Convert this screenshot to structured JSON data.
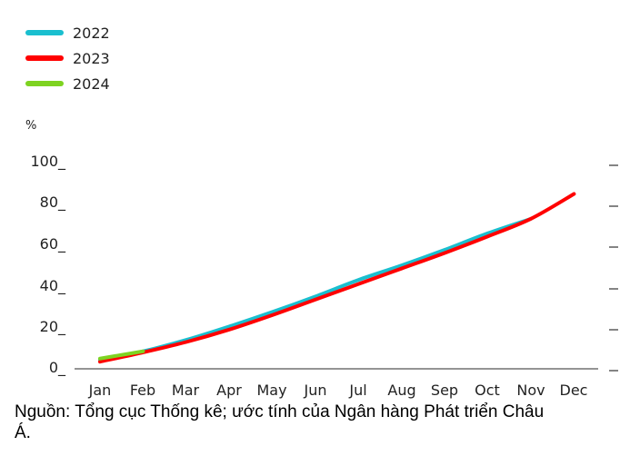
{
  "chart_data": {
    "type": "line",
    "title": "",
    "ylabel": "%",
    "xlabel": "",
    "ylim": [
      0,
      100
    ],
    "yticks": [
      0,
      20,
      40,
      60,
      80,
      100
    ],
    "grid": false,
    "legend_position": "top-left",
    "categories": [
      "Jan",
      "Feb",
      "Mar",
      "Apr",
      "May",
      "Jun",
      "Jul",
      "Aug",
      "Sep",
      "Oct",
      "Nov",
      "Dec"
    ],
    "series": [
      {
        "name": "2022",
        "color": "#1ABFCF",
        "values": [
          4,
          8,
          13.5,
          20,
          27,
          34.5,
          42.5,
          49.5,
          57,
          65,
          72,
          null
        ]
      },
      {
        "name": "2023",
        "color": "#FF0000",
        "values": [
          3,
          7.5,
          12.5,
          18.5,
          25.5,
          33,
          40.5,
          48,
          55.5,
          63.5,
          72,
          84
        ]
      },
      {
        "name": "2024",
        "color": "#7ED321",
        "values": [
          4.5,
          8,
          null,
          null,
          null,
          null,
          null,
          null,
          null,
          null,
          null,
          null
        ]
      }
    ]
  },
  "legend": [
    {
      "label": "2022",
      "color": "#1ABFCF"
    },
    {
      "label": "2023",
      "color": "#FF0000"
    },
    {
      "label": "2024",
      "color": "#7ED321"
    }
  ],
  "axis": {
    "y_unit": "%",
    "y_labels": [
      "100_",
      "80_",
      "60_",
      "40_",
      "20_",
      "0_"
    ],
    "x_labels": [
      "Jan",
      "Feb",
      "Mar",
      "Apr",
      "May",
      "Jun",
      "Jul",
      "Aug",
      "Sep",
      "Oct",
      "Nov",
      "Dec"
    ]
  },
  "source": "Nguồn: Tổng cục Thống kê; ước tính của Ngân hàng Phát triển Châu Á."
}
